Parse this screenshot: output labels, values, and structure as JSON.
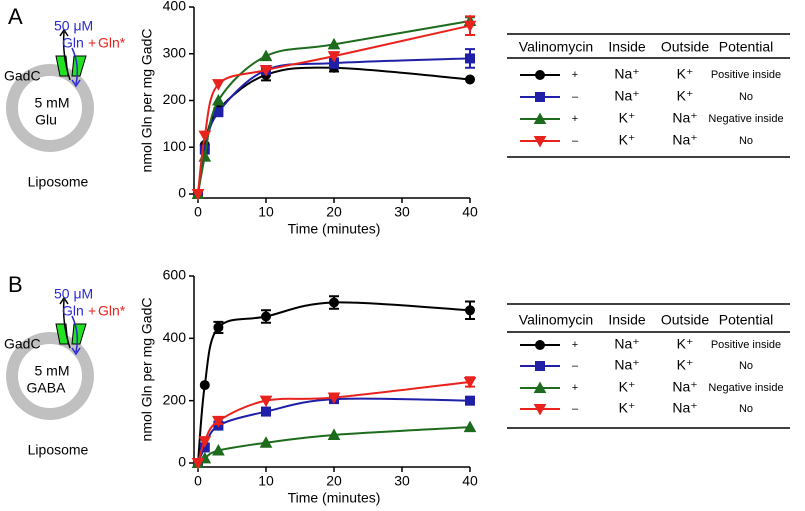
{
  "chart_data": [
    {
      "type": "line",
      "y_label": "nmol Gln per mg GadC",
      "x_label": "Time (minutes)",
      "x": [
        0,
        1,
        3,
        10,
        20,
        40
      ],
      "xlim": [
        0,
        40
      ],
      "xticks": [
        0,
        10,
        20,
        30,
        40
      ],
      "ylim": [
        0,
        400
      ],
      "yticks": [
        0,
        100,
        200,
        300,
        400
      ],
      "series": [
        {
          "color": "#000000",
          "marker": "circle",
          "values": [
            0,
            105,
            180,
            255,
            270,
            245
          ],
          "errors": [
            0,
            0,
            0,
            12,
            8,
            0
          ]
        },
        {
          "color": "#1f1fa8",
          "marker": "square",
          "values": [
            0,
            95,
            175,
            265,
            280,
            290
          ],
          "errors": [
            0,
            0,
            0,
            8,
            10,
            20
          ]
        },
        {
          "color": "#1d6b1d",
          "marker": "triangle",
          "values": [
            0,
            80,
            200,
            295,
            320,
            370
          ],
          "errors": [
            0,
            0,
            0,
            0,
            0,
            8
          ]
        },
        {
          "color": "#e8231e",
          "marker": "triangle-down",
          "values": [
            0,
            125,
            235,
            265,
            295,
            360
          ],
          "errors": [
            0,
            0,
            0,
            0,
            0,
            20
          ]
        }
      ]
    },
    {
      "type": "line",
      "y_label": "nmol Gln per mg GadC",
      "x_label": "Time (minutes)",
      "x": [
        0,
        1,
        3,
        10,
        20,
        40
      ],
      "xlim": [
        0,
        40
      ],
      "xticks": [
        0,
        10,
        20,
        30,
        40
      ],
      "ylim": [
        0,
        600
      ],
      "yticks": [
        0,
        200,
        400,
        600
      ],
      "series": [
        {
          "color": "#000000",
          "marker": "circle",
          "values": [
            0,
            250,
            435,
            470,
            515,
            490
          ],
          "errors": [
            0,
            0,
            18,
            20,
            20,
            28
          ]
        },
        {
          "color": "#1f1fa8",
          "marker": "square",
          "values": [
            0,
            50,
            120,
            165,
            205,
            200
          ],
          "errors": [
            0,
            0,
            0,
            0,
            0,
            0
          ]
        },
        {
          "color": "#1d6b1d",
          "marker": "triangle",
          "values": [
            0,
            15,
            40,
            65,
            90,
            115
          ],
          "errors": [
            0,
            0,
            0,
            0,
            0,
            0
          ]
        },
        {
          "color": "#e8231e",
          "marker": "triangle-down",
          "values": [
            0,
            70,
            135,
            200,
            210,
            260
          ],
          "errors": [
            0,
            0,
            10,
            0,
            0,
            15
          ]
        }
      ]
    }
  ],
  "panels": [
    {
      "label": "A",
      "diagram": {
        "concentration": "50 μM",
        "substrate": "Gln",
        "plus": "+",
        "tracer": "Gln*",
        "transporter": "GadC",
        "inside_conc": "5 mM",
        "inside": "Glu",
        "vesicle": "Liposome"
      },
      "table": {
        "header": [
          "Valinomycin",
          "Inside",
          "Outside",
          "Potential"
        ],
        "rows": [
          [
            "+",
            "Na⁺",
            "K⁺",
            "Positive inside"
          ],
          [
            "–",
            "Na⁺",
            "K⁺",
            "No"
          ],
          [
            "+",
            "K⁺",
            "Na⁺",
            "Negative inside"
          ],
          [
            "–",
            "K⁺",
            "Na⁺",
            "No"
          ]
        ]
      }
    },
    {
      "label": "B",
      "diagram": {
        "concentration": "50 μM",
        "substrate": "Gln",
        "plus": "+",
        "tracer": "Gln*",
        "transporter": "GadC",
        "inside_conc": "5 mM",
        "inside": "GABA",
        "vesicle": "Liposome"
      },
      "table": {
        "header": [
          "Valinomycin",
          "Inside",
          "Outside",
          "Potential"
        ],
        "rows": [
          [
            "+",
            "Na⁺",
            "K⁺",
            "Positive inside"
          ],
          [
            "–",
            "Na⁺",
            "K⁺",
            "No"
          ],
          [
            "+",
            "K⁺",
            "Na⁺",
            "Negative inside"
          ],
          [
            "–",
            "K⁺",
            "Na⁺",
            "No"
          ]
        ]
      }
    }
  ]
}
